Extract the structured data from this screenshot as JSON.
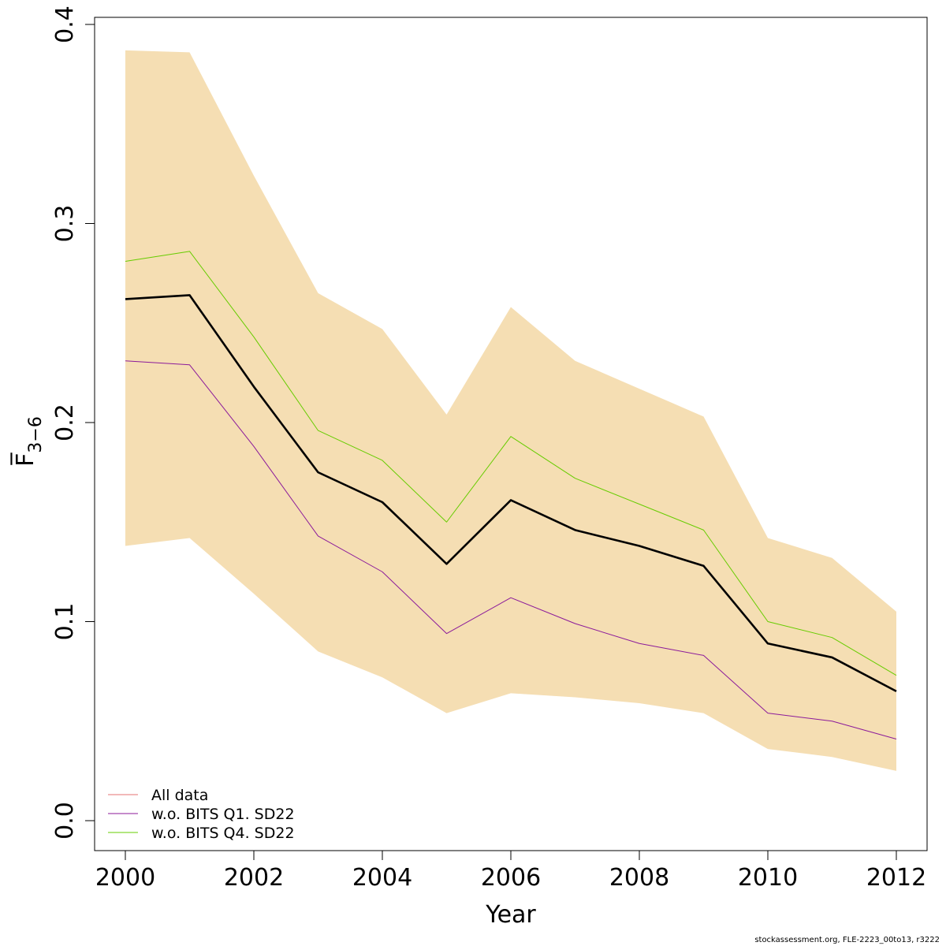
{
  "chart_data": {
    "type": "line",
    "title": "",
    "xlabel": "Year",
    "ylabel": "F̅",
    "ylabel_subscript": "3−6",
    "xlim": [
      2000,
      2012
    ],
    "ylim": [
      0.0,
      0.4
    ],
    "x_ticks": [
      2000,
      2002,
      2004,
      2006,
      2008,
      2010,
      2012
    ],
    "x_tick_labels": [
      "2000",
      "2002",
      "2004",
      "2006",
      "2008",
      "2010",
      "2012"
    ],
    "y_ticks": [
      0.0,
      0.1,
      0.2,
      0.3,
      0.4
    ],
    "y_tick_labels": [
      "0.0",
      "0.1",
      "0.2",
      "0.3",
      "0.4"
    ],
    "grid": false,
    "legend_position": "bottom-left",
    "x": [
      2000,
      2001,
      2002,
      2003,
      2004,
      2005,
      2006,
      2007,
      2008,
      2009,
      2010,
      2011,
      2012
    ],
    "band": {
      "color": "#F5DEB3",
      "lower": [
        0.138,
        0.142,
        0.114,
        0.085,
        0.072,
        0.054,
        0.064,
        0.062,
        0.059,
        0.054,
        0.036,
        0.032,
        0.025
      ],
      "upper": [
        0.387,
        0.386,
        0.324,
        0.265,
        0.247,
        0.204,
        0.258,
        0.231,
        0.217,
        0.203,
        0.142,
        0.132,
        0.105
      ]
    },
    "series": [
      {
        "name": "All data",
        "color": "#000000",
        "stroke_width": 2.6,
        "in_legend": false,
        "legend_color": "#E57373",
        "values": [
          0.262,
          0.264,
          0.218,
          0.175,
          0.16,
          0.129,
          0.161,
          0.146,
          0.138,
          0.128,
          0.089,
          0.082,
          0.065
        ]
      },
      {
        "name": "w.o. BITS Q1. SD22",
        "color": "#8B1A9A",
        "stroke_width": 1,
        "in_legend": true,
        "values": [
          0.231,
          0.229,
          0.188,
          0.143,
          0.125,
          0.094,
          0.112,
          0.099,
          0.089,
          0.083,
          0.054,
          0.05,
          0.041
        ]
      },
      {
        "name": "w.o. BITS Q4. SD22",
        "color": "#66CC00",
        "stroke_width": 1,
        "in_legend": true,
        "values": [
          0.281,
          0.286,
          0.243,
          0.196,
          0.181,
          0.15,
          0.193,
          0.172,
          0.159,
          0.146,
          0.1,
          0.092,
          0.073
        ]
      }
    ],
    "legend": [
      {
        "label": "All data",
        "color": "#E57373"
      },
      {
        "label": "w.o. BITS Q1. SD22",
        "color": "#8B1A9A"
      },
      {
        "label": "w.o. BITS Q4. SD22",
        "color": "#66CC00"
      }
    ]
  },
  "footer": "stockassessment.org, FLE-2223_00to13, r3222"
}
